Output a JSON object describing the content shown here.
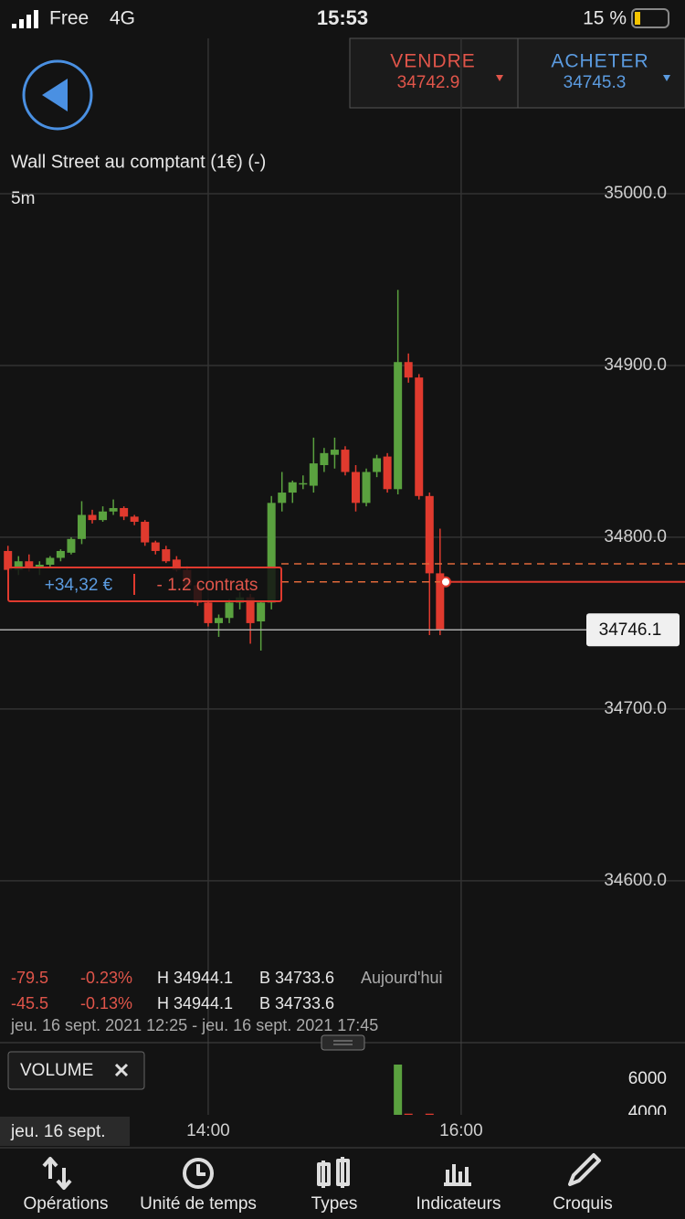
{
  "status_bar": {
    "carrier": "Free",
    "network": "4G",
    "time": "15:53",
    "battery": "15 %"
  },
  "quote": {
    "sell_label": "VENDRE",
    "sell_price": "34742.9",
    "buy_label": "ACHETER",
    "buy_price": "34745.3"
  },
  "instrument": "Wall Street au comptant (1€) (-)",
  "position": {
    "pnl": "+34,32 €",
    "size": "- 1.2 contrats"
  },
  "chart_data": [
    {
      "type": "candlestick",
      "timeframe": "5m",
      "open": [
        34792,
        34781,
        34786,
        34782,
        34784,
        34788,
        34791,
        34799,
        34813,
        34810,
        34815,
        34817,
        34812,
        34809,
        34797,
        34793,
        34787,
        34781,
        34772,
        34762,
        34750,
        34753,
        34762,
        34765,
        34751,
        34762,
        34820,
        34826,
        34831,
        34830,
        34842,
        34848,
        34851,
        34838,
        34820,
        34838,
        34847,
        34828,
        34902,
        34893,
        34824,
        34779
      ],
      "high": [
        34795,
        34789,
        34790,
        34786,
        34789,
        34793,
        34800,
        34821,
        34816,
        34818,
        34822,
        34818,
        34813,
        34810,
        34798,
        34795,
        34789,
        34783,
        34775,
        34764,
        34755,
        34764,
        34768,
        34767,
        34763,
        34824,
        34838,
        34833,
        34836,
        34858,
        34852,
        34858,
        34853,
        34842,
        34840,
        34848,
        34849,
        34944,
        34907,
        34895,
        34826,
        34805
      ],
      "low": [
        34779,
        34778,
        34780,
        34778,
        34782,
        34786,
        34790,
        34796,
        34808,
        34809,
        34813,
        34810,
        34807,
        34795,
        34790,
        34785,
        34780,
        34770,
        34760,
        34748,
        34742,
        34750,
        34758,
        34738,
        34734,
        34758,
        34815,
        34820,
        34828,
        34826,
        34838,
        34840,
        34836,
        34815,
        34818,
        34835,
        34826,
        34825,
        34890,
        34822,
        34743,
        34743
      ],
      "close": [
        34781,
        34786,
        34782,
        34784,
        34788,
        34792,
        34799,
        34813,
        34810,
        34815,
        34817,
        34812,
        34809,
        34797,
        34792,
        34786,
        34781,
        34772,
        34762,
        34750,
        34753,
        34762,
        34765,
        34750,
        34762,
        34820,
        34826,
        34832,
        34831.5,
        34843,
        34849,
        34851,
        34838,
        34820,
        34838,
        34846,
        34828,
        34902,
        34893,
        34824,
        34779,
        34746.1
      ],
      "up_color": "#5aa13f",
      "down_color": "#e03a2e",
      "xlim": [
        -0.754,
        64.24
      ],
      "xticks": [
        {
          "value": 19,
          "label": "14:00"
        },
        {
          "value": 43,
          "label": "16:00"
        }
      ],
      "ylim": [
        34560,
        35091
      ],
      "yticks": [
        {
          "value": 35000,
          "label": "35000.0"
        },
        {
          "value": 34900,
          "label": "34900.0"
        },
        {
          "value": 34800,
          "label": "34800.0"
        },
        {
          "value": 34700,
          "label": "34700.0"
        },
        {
          "value": 34600,
          "label": "34600.0"
        }
      ],
      "last_price": 34746.1,
      "order_lines": [
        34784.5,
        34774
      ],
      "grid": true,
      "stats": [
        [
          "-79.5",
          "-0.23%",
          "H 34944.1",
          "B 34733.6",
          "Aujourd'hui"
        ],
        [
          "-45.5",
          "-0.13%",
          "H 34944.1",
          "B 34733.6"
        ]
      ],
      "date_range": "jeu. 16 sept. 2021 12:25 - jeu. 16 sept. 2021 17:45",
      "date_label": "jeu. 16 sept."
    },
    {
      "type": "bar",
      "title": "VOLUME",
      "values": [
        null,
        null,
        null,
        null,
        null,
        null,
        null,
        null,
        null,
        null,
        null,
        null,
        null,
        null,
        null,
        null,
        null,
        null,
        null,
        null,
        null,
        null,
        null,
        null,
        null,
        null,
        null,
        null,
        null,
        null,
        null,
        null,
        null,
        null,
        null,
        null,
        null,
        6865,
        3960,
        null,
        3960,
        null
      ],
      "colors_by": "candle",
      "ylim": [
        3892,
        7676
      ],
      "yticks": [
        6000,
        4000
      ]
    }
  ],
  "toolbar": [
    "Opérations",
    "Unité de temps",
    "Types",
    "Indicateurs",
    "Croquis"
  ]
}
